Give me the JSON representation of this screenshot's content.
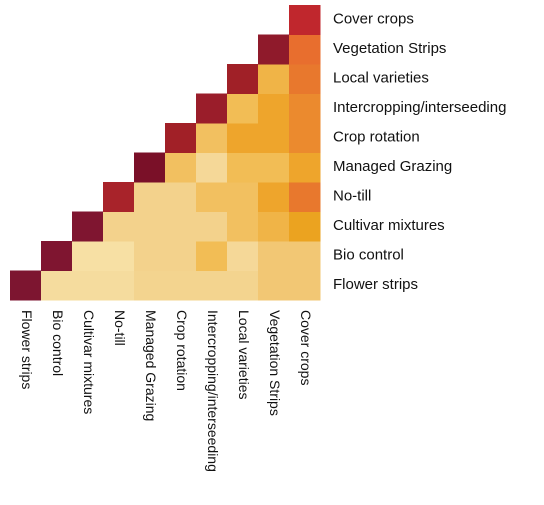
{
  "chart_data": {
    "type": "heatmap",
    "categories": [
      "Flower strips",
      "Bio control",
      "Cultivar mixtures",
      "No-till",
      "Managed Grazing",
      "Crop rotation",
      "Intercropping/interseeding",
      "Local varieties",
      "Vegetation Strips",
      "Cover crops"
    ],
    "cell_colors": [
      [
        "#7d1530",
        "#f5dc9e",
        "#f5dc9e",
        "#f5dc9e",
        "#f3d48f",
        "#f3d48f",
        "#f3d48f",
        "#f3d48f",
        "#f2c774",
        "#f2c774"
      ],
      [
        "#7f1530",
        "#f7e0a4",
        "#f7e0a4",
        "#f3d28c",
        "#f3d28c",
        "#f2bd55",
        "#f5d898",
        "#f2c774",
        "#f2c774"
      ],
      [
        "#7f1530",
        "#f3d28c",
        "#f3d28c",
        "#f3d28c",
        "#f3d28c",
        "#f2c060",
        "#f0b447",
        "#eba320"
      ],
      [
        "#a8232a",
        "#f3d28c",
        "#f3d28c",
        "#f2c060",
        "#f2c060",
        "#eea52c",
        "#e8782d"
      ],
      [
        "#7a1028",
        "#f2c060",
        "#f5d898",
        "#f2bd55",
        "#f2bd55",
        "#eea52c"
      ],
      [
        "#a12027",
        "#f2c060",
        "#eea52c",
        "#eea52c",
        "#eb8a2e"
      ],
      [
        "#9a1d2a",
        "#f2bd55",
        "#eea52c",
        "#eb8a2e"
      ],
      [
        "#a02027",
        "#f0b447",
        "#e8782d"
      ],
      [
        "#8f1a2b",
        "#e86e2e"
      ],
      [
        "#c0272d"
      ]
    ]
  }
}
